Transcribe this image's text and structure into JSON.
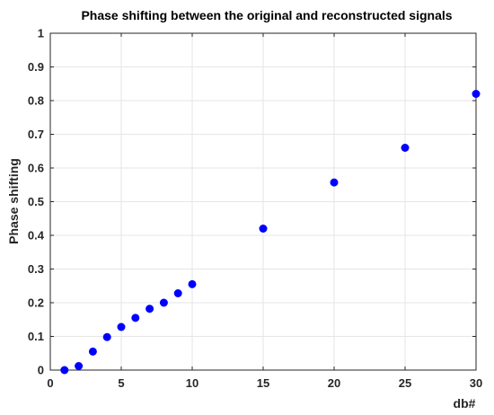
{
  "chart_data": {
    "type": "scatter",
    "title": "Phase shifting between the original and reconstructed signals",
    "xlabel": "db#",
    "ylabel": "Phase shifting",
    "xlim": [
      0,
      30
    ],
    "ylim": [
      0,
      1
    ],
    "xticks": [
      0,
      5,
      10,
      15,
      20,
      25,
      30
    ],
    "yticks": [
      0,
      0.1,
      0.2,
      0.3,
      0.4,
      0.5,
      0.6,
      0.7,
      0.8,
      0.9,
      1
    ],
    "xtick_labels": [
      "0",
      "5",
      "10",
      "15",
      "20",
      "25",
      "30"
    ],
    "ytick_labels": [
      "0",
      "0.1",
      "0.2",
      "0.3",
      "0.4",
      "0.5",
      "0.6",
      "0.7",
      "0.8",
      "0.9",
      "1"
    ],
    "grid": true,
    "marker_color": "#0000ff",
    "series": [
      {
        "x": [
          1,
          2,
          3,
          4,
          5,
          6,
          7,
          8,
          9,
          10,
          15,
          20,
          25,
          30
        ],
        "y": [
          0.0,
          0.012,
          0.055,
          0.098,
          0.128,
          0.155,
          0.182,
          0.2,
          0.228,
          0.255,
          0.42,
          0.557,
          0.66,
          0.82
        ]
      }
    ]
  }
}
